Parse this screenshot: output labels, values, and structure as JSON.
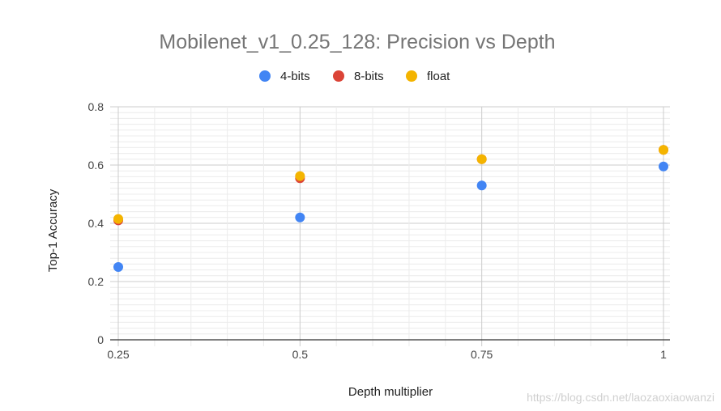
{
  "chart_data": {
    "type": "scatter",
    "title": "Mobilenet_v1_0.25_128: Precision vs Depth",
    "xlabel": "Depth multiplier",
    "ylabel": "Top-1 Accuracy",
    "x": [
      0.25,
      0.5,
      0.75,
      1
    ],
    "xlim": [
      0.25,
      1
    ],
    "ylim": [
      0,
      0.8
    ],
    "x_ticks": [
      0.25,
      0.5,
      0.75,
      1
    ],
    "x_tick_labels": [
      "0.25",
      "0.5",
      "0.75",
      "1"
    ],
    "y_ticks": [
      0,
      0.2,
      0.4,
      0.6,
      0.8
    ],
    "y_tick_labels": [
      "0",
      "0.2",
      "0.4",
      "0.6",
      "0.8"
    ],
    "grid": true,
    "legend_position": "top",
    "series": [
      {
        "name": "4-bits",
        "color": "#4285f4",
        "values": [
          0.25,
          0.42,
          0.53,
          0.595
        ]
      },
      {
        "name": "8-bits",
        "color": "#db4437",
        "values": [
          0.41,
          0.555,
          0.62,
          0.652
        ]
      },
      {
        "name": "float",
        "color": "#f4b400",
        "values": [
          0.415,
          0.562,
          0.62,
          0.652
        ]
      }
    ]
  },
  "watermark": "https://blog.csdn.net/laozaoxiaowanzi"
}
